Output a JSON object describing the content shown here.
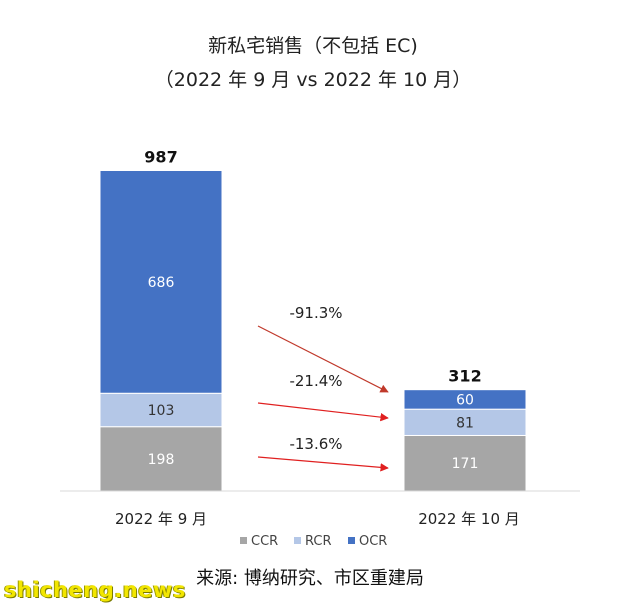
{
  "chart_data": {
    "type": "bar",
    "stacked": true,
    "title": "新私宅销售（不包括 EC)",
    "subtitle": "（2022 年 9 月 vs 2022 年 10 月）",
    "categories": [
      "2022 年 9 月",
      "2022 年 10 月"
    ],
    "totals": [
      987,
      312
    ],
    "series": [
      {
        "name": "CCR",
        "values": [
          198,
          171
        ],
        "color": "#a6a6a6",
        "label_color": "#ffffff"
      },
      {
        "name": "RCR",
        "values": [
          103,
          81
        ],
        "color": "#b4c7e7",
        "label_color": "#333333"
      },
      {
        "name": "OCR",
        "values": [
          686,
          60
        ],
        "color": "#4472c4",
        "label_color": "#ffffff"
      }
    ],
    "changes": [
      {
        "series": "OCR",
        "label": "-91.3%",
        "arrow_color": "#c0392b"
      },
      {
        "series": "RCR",
        "label": "-21.4%",
        "arrow_color": "#e02020"
      },
      {
        "series": "CCR",
        "label": "-13.6%",
        "arrow_color": "#e02020"
      }
    ],
    "ylim": [
      0,
      1000
    ],
    "grid": false,
    "legend_position": "bottom"
  },
  "source": "来源: 博纳研究、市区重建局",
  "watermark": "shicheng.news"
}
